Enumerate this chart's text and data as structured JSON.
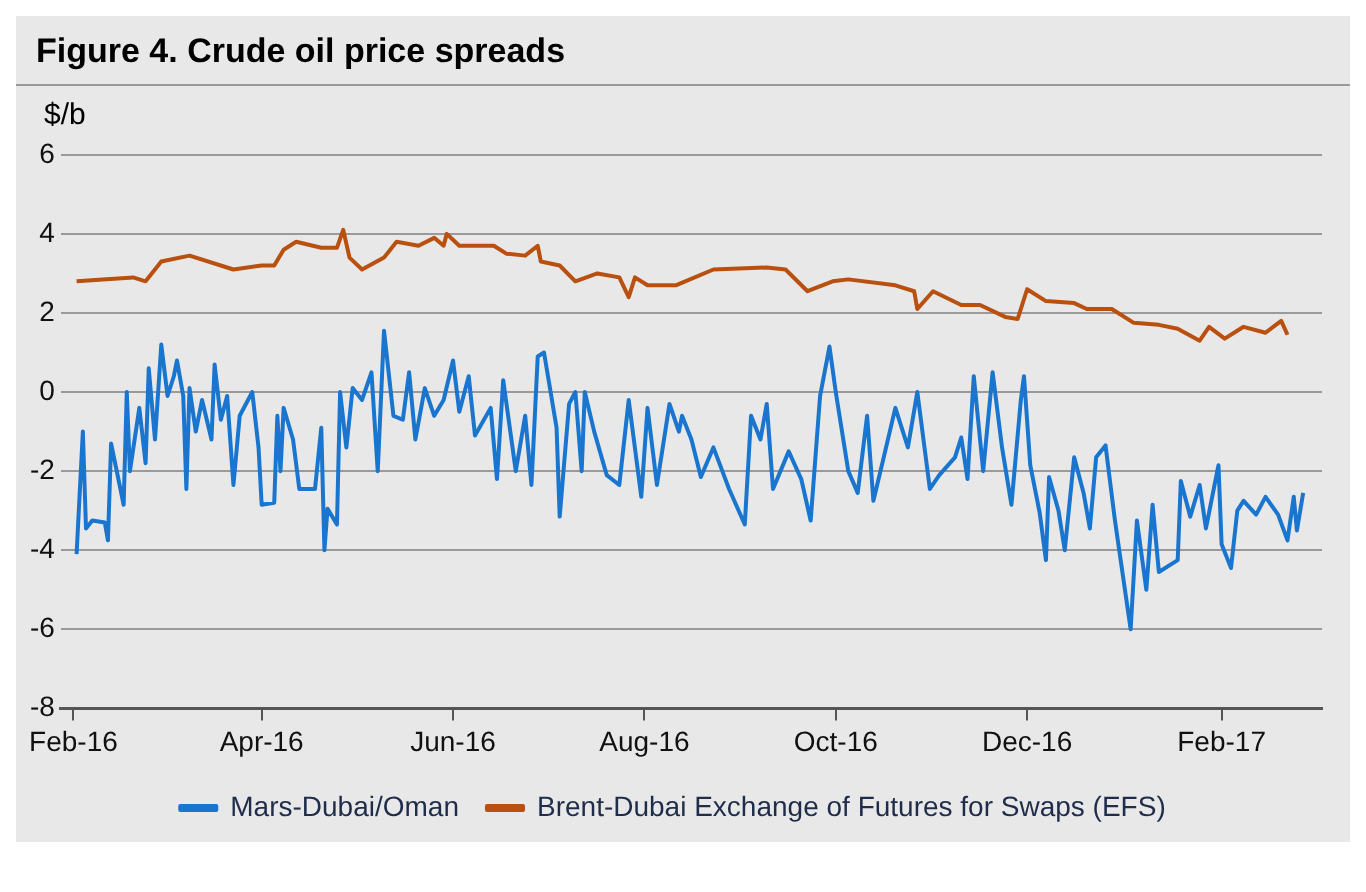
{
  "chart_data": {
    "type": "line",
    "title": "Figure 4. Crude oil price spreads",
    "ylabel": "$/b",
    "xlim": [
      "2016-01-28",
      "2017-03-05"
    ],
    "xticks": [
      {
        "value": "2016-02-01",
        "label": "Feb-16"
      },
      {
        "value": "2016-04-01",
        "label": "Apr-16"
      },
      {
        "value": "2016-06-01",
        "label": "Jun-16"
      },
      {
        "value": "2016-08-01",
        "label": "Aug-16"
      },
      {
        "value": "2016-10-01",
        "label": "Oct-16"
      },
      {
        "value": "2016-12-01",
        "label": "Dec-16"
      },
      {
        "value": "2017-02-01",
        "label": "Feb-17"
      }
    ],
    "ylim": [
      -8,
      6
    ],
    "yticks": [
      -8,
      -6,
      -4,
      -2,
      0,
      2,
      4,
      6
    ],
    "grid": "y",
    "legend": "bottom",
    "marker": "none",
    "line_style": "solid",
    "series": [
      {
        "name": "Mars-Dubai/Oman",
        "color": "#1a75cf",
        "x": [
          "2016-02-02",
          "2016-02-04",
          "2016-02-05",
          "2016-02-07",
          "2016-02-11",
          "2016-02-12",
          "2016-02-13",
          "2016-02-17",
          "2016-02-18",
          "2016-02-19",
          "2016-02-22",
          "2016-02-24",
          "2016-02-25",
          "2016-02-27",
          "2016-02-29",
          "2016-03-02",
          "2016-03-04",
          "2016-03-05",
          "2016-03-07",
          "2016-03-08",
          "2016-03-09",
          "2016-03-11",
          "2016-03-13",
          "2016-03-16",
          "2016-03-17",
          "2016-03-19",
          "2016-03-21",
          "2016-03-23",
          "2016-03-25",
          "2016-03-29",
          "2016-03-31",
          "2016-04-01",
          "2016-04-05",
          "2016-04-06",
          "2016-04-07",
          "2016-04-08",
          "2016-04-11",
          "2016-04-13",
          "2016-04-18",
          "2016-04-20",
          "2016-04-21",
          "2016-04-22",
          "2016-04-25",
          "2016-04-26",
          "2016-04-28",
          "2016-04-30",
          "2016-05-03",
          "2016-05-06",
          "2016-05-08",
          "2016-05-10",
          "2016-05-13",
          "2016-05-16",
          "2016-05-18",
          "2016-05-20",
          "2016-05-23",
          "2016-05-26",
          "2016-05-29",
          "2016-06-01",
          "2016-06-03",
          "2016-06-06",
          "2016-06-08",
          "2016-06-13",
          "2016-06-15",
          "2016-06-17",
          "2016-06-21",
          "2016-06-24",
          "2016-06-26",
          "2016-06-28",
          "2016-06-30",
          "2016-07-04",
          "2016-07-05",
          "2016-07-08",
          "2016-07-10",
          "2016-07-12",
          "2016-07-13",
          "2016-07-16",
          "2016-07-20",
          "2016-07-24",
          "2016-07-27",
          "2016-07-31",
          "2016-08-02",
          "2016-08-05",
          "2016-08-09",
          "2016-08-12",
          "2016-08-13",
          "2016-08-16",
          "2016-08-19",
          "2016-08-23",
          "2016-08-28",
          "2016-09-02",
          "2016-09-04",
          "2016-09-07",
          "2016-09-09",
          "2016-09-11",
          "2016-09-16",
          "2016-09-20",
          "2016-09-23",
          "2016-09-26",
          "2016-09-29",
          "2016-10-01",
          "2016-10-05",
          "2016-10-08",
          "2016-10-11",
          "2016-10-13",
          "2016-10-16",
          "2016-10-20",
          "2016-10-24",
          "2016-10-27",
          "2016-10-31",
          "2016-11-03",
          "2016-11-08",
          "2016-11-10",
          "2016-11-12",
          "2016-11-14",
          "2016-11-17",
          "2016-11-20",
          "2016-11-23",
          "2016-11-26",
          "2016-11-29",
          "2016-11-30",
          "2016-12-02",
          "2016-12-05",
          "2016-12-07",
          "2016-12-08",
          "2016-12-11",
          "2016-12-13",
          "2016-12-16",
          "2016-12-19",
          "2016-12-21",
          "2016-12-23",
          "2016-12-26",
          "2016-12-29",
          "2017-01-03",
          "2017-01-05",
          "2017-01-08",
          "2017-01-10",
          "2017-01-12",
          "2017-01-18",
          "2017-01-19",
          "2017-01-22",
          "2017-01-25",
          "2017-01-27",
          "2017-01-31",
          "2017-02-01",
          "2017-02-04",
          "2017-02-06",
          "2017-02-08",
          "2017-02-12",
          "2017-02-15",
          "2017-02-19",
          "2017-02-22",
          "2017-02-24",
          "2017-02-25",
          "2017-02-27"
        ],
        "values": [
          -4.1,
          -1.0,
          -3.45,
          -3.25,
          -3.3,
          -3.75,
          -1.3,
          -2.85,
          0,
          -2.0,
          -0.4,
          -1.8,
          0.6,
          -1.2,
          1.2,
          -0.1,
          0.4,
          0.8,
          -0.1,
          -2.45,
          0.1,
          -1.0,
          -0.2,
          -1.2,
          0.7,
          -0.7,
          -0.1,
          -2.35,
          -0.6,
          0,
          -1.4,
          -2.85,
          -2.8,
          -0.6,
          -2.0,
          -0.4,
          -1.2,
          -2.45,
          -2.45,
          -0.9,
          -4.0,
          -2.95,
          -3.35,
          0,
          -1.4,
          0.1,
          -0.2,
          0.5,
          -2.0,
          1.55,
          -0.6,
          -0.7,
          0.5,
          -1.2,
          0.1,
          -0.6,
          -0.2,
          0.8,
          -0.5,
          0.4,
          -1.1,
          -0.4,
          -2.2,
          0.3,
          -2.0,
          -0.6,
          -2.35,
          0.9,
          1.0,
          -0.9,
          -3.15,
          -0.3,
          0,
          -2.0,
          0,
          -1.0,
          -2.1,
          -2.35,
          -0.2,
          -2.65,
          -0.4,
          -2.35,
          -0.3,
          -1.0,
          -0.6,
          -1.2,
          -2.15,
          -1.4,
          -2.45,
          -3.35,
          -0.6,
          -1.2,
          -0.3,
          -2.45,
          -1.5,
          -2.2,
          -3.25,
          -0.1,
          1.15,
          0,
          -2.0,
          -2.55,
          -0.6,
          -2.75,
          -1.75,
          -0.4,
          -1.4,
          0,
          -2.45,
          -2.1,
          -1.65,
          -1.15,
          -2.2,
          0.4,
          -2.0,
          0.5,
          -1.4,
          -2.85,
          -0.2,
          0.4,
          -1.85,
          -3.05,
          -4.25,
          -2.15,
          -3.0,
          -4.0,
          -1.65,
          -2.55,
          -3.45,
          -1.65,
          -1.35,
          -3.25,
          -6.0,
          -3.25,
          -5.0,
          -2.85,
          -4.55,
          -4.25,
          -2.25,
          -3.15,
          -2.35,
          -3.45,
          -1.85,
          -3.85,
          -4.45,
          -3.0,
          -2.75,
          -3.1,
          -2.65,
          -3.1,
          -3.75,
          -2.65,
          -3.5,
          -2.55
        ]
      },
      {
        "name": "Brent-Dubai Exchange of Futures for Swaps (EFS)",
        "color": "#b9500f",
        "x": [
          "2016-02-02",
          "2016-02-20",
          "2016-02-24",
          "2016-02-29",
          "2016-03-09",
          "2016-03-23",
          "2016-04-01",
          "2016-04-05",
          "2016-04-08",
          "2016-04-12",
          "2016-04-20",
          "2016-04-25",
          "2016-04-27",
          "2016-04-29",
          "2016-05-03",
          "2016-05-10",
          "2016-05-14",
          "2016-05-21",
          "2016-05-26",
          "2016-05-29",
          "2016-05-30",
          "2016-06-03",
          "2016-06-14",
          "2016-06-18",
          "2016-06-24",
          "2016-06-28",
          "2016-06-29",
          "2016-07-05",
          "2016-07-10",
          "2016-07-17",
          "2016-07-24",
          "2016-07-27",
          "2016-07-29",
          "2016-08-02",
          "2016-08-11",
          "2016-08-23",
          "2016-09-09",
          "2016-09-15",
          "2016-09-22",
          "2016-09-30",
          "2016-10-05",
          "2016-10-20",
          "2016-10-26",
          "2016-10-27",
          "2016-11-01",
          "2016-11-10",
          "2016-11-16",
          "2016-11-24",
          "2016-11-28",
          "2016-12-01",
          "2016-12-07",
          "2016-12-16",
          "2016-12-20",
          "2016-12-28",
          "2017-01-04",
          "2017-01-12",
          "2017-01-18",
          "2017-01-25",
          "2017-01-28",
          "2017-02-02",
          "2017-02-08",
          "2017-02-15",
          "2017-02-20",
          "2017-02-22"
        ],
        "values": [
          2.8,
          2.9,
          2.8,
          3.3,
          3.45,
          3.1,
          3.2,
          3.2,
          3.6,
          3.8,
          3.65,
          3.65,
          4.1,
          3.4,
          3.1,
          3.4,
          3.8,
          3.7,
          3.9,
          3.7,
          4.0,
          3.7,
          3.7,
          3.5,
          3.45,
          3.7,
          3.3,
          3.2,
          2.8,
          3.0,
          2.9,
          2.4,
          2.9,
          2.7,
          2.7,
          3.1,
          3.15,
          3.1,
          2.55,
          2.8,
          2.85,
          2.7,
          2.55,
          2.1,
          2.55,
          2.2,
          2.2,
          1.9,
          1.85,
          2.6,
          2.3,
          2.25,
          2.1,
          2.1,
          1.75,
          1.7,
          1.6,
          1.3,
          1.65,
          1.35,
          1.65,
          1.5,
          1.8,
          1.45
        ]
      }
    ]
  }
}
